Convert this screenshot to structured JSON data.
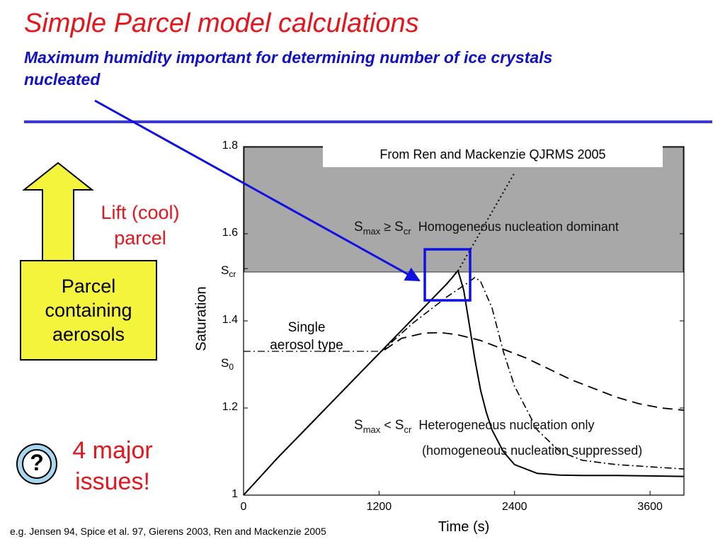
{
  "slide": {
    "title": "Simple Parcel model calculations",
    "subtitle": "Maximum humidity important for determining number of ice crystals nucleated",
    "lift_text": [
      "Lift (cool)",
      "parcel"
    ],
    "parcel_box": [
      "Parcel",
      "containing",
      "aerosols"
    ],
    "issues": [
      "4 major",
      "issues!"
    ],
    "question_symbol": "?",
    "footer": "e.g. Jensen 94, Spice et al. 97, Gierens 2003, Ren and Mackenzie 2005",
    "colors": {
      "title": "#e8141b",
      "subtitle": "#1010c8",
      "arrow": "#1010e0",
      "box": "#f4f43c",
      "homogeneous_region": "#a8a8a8"
    },
    "icons": [
      "up-arrow-icon",
      "question-icon"
    ]
  },
  "chart_data": {
    "type": "line",
    "source": "From Ren and Mackenzie QJRMS 2005",
    "xlabel": "Time (s)",
    "ylabel": "Saturation",
    "xlim": [
      0,
      3900
    ],
    "ylim": [
      1,
      1.8
    ],
    "xticks": [
      0,
      1200,
      2400,
      3600
    ],
    "yticks": [
      1,
      1.2,
      1.4,
      1.6,
      1.8
    ],
    "ytick_labels": [
      "1",
      "1.2",
      "1.4",
      "1.6",
      "1.8"
    ],
    "symbols": {
      "scr": {
        "main": "S",
        "sub": "cr",
        "value": 1.52
      },
      "s0": {
        "main": "S",
        "sub": "0",
        "value": 1.33
      }
    },
    "region_labels": {
      "homogeneous": {
        "lhs": "S",
        "lhs_sub": "max",
        "op": "≥",
        "rhs": "S",
        "rhs_sub": "cr",
        "text": "Homogeneous nucleation dominant"
      },
      "heterogeneous": {
        "lhs": "S",
        "lhs_sub": "max",
        "op": "<",
        "rhs": "S",
        "rhs_sub": "cr",
        "text": "Heterogeneous nucleation only"
      },
      "note": "(homogeneous nucleation suppressed)"
    },
    "annotation": [
      "Single",
      "aerosol type"
    ],
    "shaded_region": {
      "from": 1.52,
      "to": 1.8
    },
    "series": [
      {
        "style": "solid",
        "x": [
          0,
          300,
          600,
          900,
          1200,
          1500,
          1800,
          1850,
          1880,
          1900,
          1950,
          2000,
          2050,
          2100,
          2150,
          2200,
          2300,
          2400,
          2600,
          2800,
          3000,
          3300,
          3600,
          3900
        ],
        "y": [
          1.0,
          1.085,
          1.165,
          1.245,
          1.325,
          1.405,
          1.485,
          1.5,
          1.51,
          1.515,
          1.47,
          1.39,
          1.31,
          1.24,
          1.19,
          1.15,
          1.1,
          1.07,
          1.05,
          1.046,
          1.045,
          1.045,
          1.044,
          1.043
        ]
      },
      {
        "style": "dotted",
        "x": [
          1800,
          1900,
          2000,
          2100,
          2200,
          2300,
          2400
        ],
        "y": [
          1.485,
          1.515,
          1.56,
          1.605,
          1.65,
          1.695,
          1.74
        ]
      },
      {
        "style": "dashdot",
        "x": [
          0,
          300,
          600,
          900,
          1200,
          1500,
          1800,
          2000,
          2050,
          2100,
          2200,
          2300,
          2400,
          2600,
          2800,
          3000,
          3300,
          3600,
          3900
        ],
        "y": [
          1.0,
          1.085,
          1.165,
          1.245,
          1.325,
          1.395,
          1.455,
          1.49,
          1.5,
          1.49,
          1.43,
          1.33,
          1.25,
          1.15,
          1.1,
          1.08,
          1.07,
          1.065,
          1.06
        ]
      },
      {
        "style": "dashed",
        "x": [
          0,
          300,
          600,
          900,
          1200,
          1400,
          1600,
          1750,
          1900,
          2100,
          2300,
          2500,
          2700,
          2900,
          3100,
          3300,
          3500,
          3700,
          3900
        ],
        "y": [
          1.0,
          1.085,
          1.165,
          1.245,
          1.325,
          1.36,
          1.372,
          1.373,
          1.368,
          1.355,
          1.335,
          1.315,
          1.29,
          1.265,
          1.245,
          1.225,
          1.21,
          1.2,
          1.195
        ]
      },
      {
        "style": "dashdot-thin",
        "x": [
          0,
          1200
        ],
        "y": [
          1.33,
          1.33
        ]
      }
    ]
  }
}
